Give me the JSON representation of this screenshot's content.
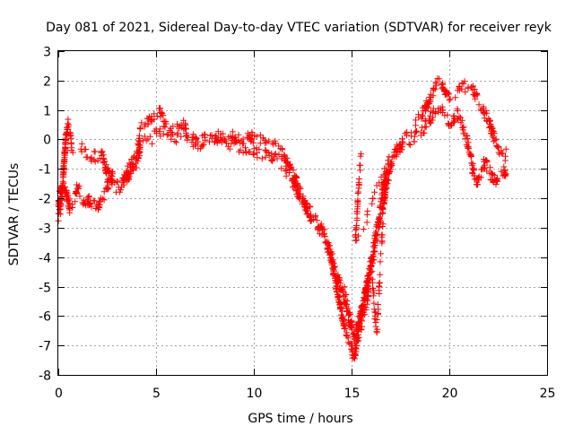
{
  "chart_data": {
    "type": "scatter",
    "title": "Day 081 of 2021, Sidereal Day-to-day VTEC variation (SDTVAR) for receiver reyk",
    "xlabel": "GPS time / hours",
    "ylabel": "SDTVAR / TECUs",
    "xlim": [
      0,
      25
    ],
    "ylim": [
      -8,
      3
    ],
    "xticks": [
      0,
      5,
      10,
      15,
      20,
      25
    ],
    "yticks": [
      -8,
      -7,
      -6,
      -5,
      -4,
      -3,
      -2,
      -1,
      0,
      1,
      2,
      3
    ],
    "grid": true,
    "marker": "+",
    "series": [
      {
        "name": "SDTVAR",
        "color": "#ff0000",
        "bands": [
          {
            "points": [
              [
                0.0,
                -2.6
              ],
              [
                0.1,
                -2.4
              ],
              [
                0.2,
                -1.8
              ],
              [
                0.3,
                -0.7
              ],
              [
                0.4,
                0.1
              ],
              [
                0.5,
                0.5
              ],
              [
                0.6,
                0.3
              ],
              [
                0.7,
                -0.4
              ],
              [
                0.8,
                -0.3
              ],
              [
                1.0,
                -0.2
              ],
              [
                1.2,
                -0.3
              ],
              [
                1.4,
                -0.5
              ],
              [
                1.6,
                -0.6
              ],
              [
                1.8,
                -0.5
              ],
              [
                2.0,
                -0.7
              ],
              [
                2.2,
                -0.4
              ],
              [
                2.4,
                -0.9
              ],
              [
                2.6,
                -1.3
              ],
              [
                2.8,
                -1.5
              ],
              [
                3.0,
                -1.7
              ],
              [
                3.2,
                -1.6
              ],
              [
                3.4,
                -1.3
              ],
              [
                3.6,
                -1.0
              ],
              [
                3.8,
                -0.8
              ],
              [
                4.0,
                -0.6
              ],
              [
                4.1,
                -0.2
              ],
              [
                4.2,
                0.4
              ],
              [
                4.4,
                0.5
              ],
              [
                4.6,
                0.6
              ],
              [
                4.8,
                0.7
              ],
              [
                5.0,
                0.8
              ],
              [
                5.2,
                0.9
              ],
              [
                5.4,
                0.6
              ],
              [
                5.6,
                0.4
              ],
              [
                5.8,
                0.3
              ],
              [
                6.0,
                0.3
              ],
              [
                6.2,
                0.4
              ],
              [
                6.4,
                0.5
              ],
              [
                6.5,
                0.4
              ],
              [
                6.6,
                0.1
              ],
              [
                6.8,
                0.0
              ],
              [
                7.0,
                -0.1
              ],
              [
                7.2,
                -0.3
              ],
              [
                7.4,
                -0.2
              ],
              [
                7.6,
                -0.1
              ],
              [
                7.8,
                0.0
              ],
              [
                8.0,
                0.1
              ],
              [
                8.2,
                0.1
              ],
              [
                8.5,
                0.1
              ],
              [
                8.8,
                0.0
              ],
              [
                9.0,
                0.1
              ],
              [
                9.3,
                0.0
              ],
              [
                9.5,
                0.0
              ],
              [
                9.8,
                0.1
              ],
              [
                10.0,
                0.0
              ],
              [
                10.2,
                0.0
              ],
              [
                10.5,
                -0.1
              ],
              [
                10.8,
                -0.2
              ],
              [
                11.0,
                -0.2
              ],
              [
                11.2,
                -0.3
              ],
              [
                11.4,
                -0.4
              ],
              [
                11.6,
                -0.6
              ],
              [
                11.8,
                -0.9
              ],
              [
                12.0,
                -1.2
              ],
              [
                12.2,
                -1.5
              ],
              [
                12.4,
                -1.8
              ],
              [
                12.6,
                -2.1
              ],
              [
                12.8,
                -2.4
              ],
              [
                13.0,
                -2.6
              ],
              [
                13.2,
                -2.8
              ],
              [
                13.4,
                -3.0
              ],
              [
                13.6,
                -3.2
              ],
              [
                13.8,
                -3.6
              ],
              [
                14.0,
                -4.2
              ],
              [
                14.2,
                -4.9
              ],
              [
                14.4,
                -5.6
              ],
              [
                14.6,
                -6.2
              ],
              [
                14.8,
                -6.7
              ],
              [
                15.0,
                -7.1
              ],
              [
                15.1,
                -7.4
              ],
              [
                15.2,
                -7.2
              ],
              [
                15.3,
                -6.6
              ],
              [
                15.4,
                -6.2
              ],
              [
                15.6,
                -5.6
              ],
              [
                15.8,
                -5.0
              ],
              [
                16.0,
                -4.4
              ],
              [
                16.2,
                -3.7
              ],
              [
                16.4,
                -3.0
              ],
              [
                16.6,
                -2.3
              ],
              [
                16.8,
                -1.5
              ],
              [
                17.0,
                -0.9
              ],
              [
                17.2,
                -0.5
              ],
              [
                17.4,
                -0.3
              ],
              [
                17.6,
                -0.1
              ],
              [
                17.8,
                0.1
              ],
              [
                18.0,
                0.3
              ],
              [
                18.2,
                0.5
              ],
              [
                18.4,
                0.7
              ],
              [
                18.6,
                0.9
              ],
              [
                18.8,
                1.1
              ],
              [
                19.0,
                1.4
              ],
              [
                19.2,
                1.7
              ],
              [
                19.4,
                1.9
              ],
              [
                19.6,
                1.8
              ],
              [
                19.8,
                1.6
              ],
              [
                20.0,
                1.4
              ],
              [
                20.2,
                1.5
              ],
              [
                20.4,
                1.6
              ],
              [
                20.6,
                1.7
              ],
              [
                20.8,
                1.8
              ],
              [
                21.0,
                1.9
              ],
              [
                21.2,
                1.7
              ],
              [
                21.4,
                1.4
              ],
              [
                21.6,
                1.2
              ],
              [
                21.8,
                0.9
              ],
              [
                22.0,
                0.6
              ],
              [
                22.2,
                0.2
              ],
              [
                22.4,
                -0.1
              ],
              [
                22.6,
                -0.4
              ],
              [
                22.8,
                -0.6
              ],
              [
                22.9,
                -0.5
              ]
            ],
            "width": 0.4,
            "count": 760
          },
          {
            "points": [
              [
                0.0,
                -2.2
              ],
              [
                0.2,
                -1.5
              ],
              [
                0.4,
                -1.8
              ],
              [
                0.6,
                -2.4
              ],
              [
                0.8,
                -2.1
              ],
              [
                1.0,
                -1.6
              ],
              [
                1.2,
                -1.9
              ],
              [
                1.4,
                -2.3
              ],
              [
                1.6,
                -2.0
              ],
              [
                1.8,
                -2.2
              ],
              [
                2.0,
                -2.4
              ],
              [
                2.2,
                -2.1
              ],
              [
                2.4,
                -1.8
              ],
              [
                2.6,
                -1.4
              ],
              [
                2.8,
                -1.2
              ],
              [
                3.0,
                -1.4
              ],
              [
                3.2,
                -1.7
              ],
              [
                3.4,
                -1.3
              ],
              [
                3.6,
                -1.2
              ],
              [
                3.8,
                -1.0
              ],
              [
                4.0,
                -0.9
              ],
              [
                4.2,
                -0.3
              ],
              [
                4.4,
                0.0
              ],
              [
                4.6,
                0.1
              ],
              [
                4.8,
                0.0
              ],
              [
                5.0,
                0.2
              ],
              [
                5.2,
                0.3
              ],
              [
                5.4,
                0.2
              ],
              [
                5.6,
                0.2
              ],
              [
                5.8,
                0.1
              ],
              [
                6.0,
                0.0
              ],
              [
                6.2,
                0.1
              ],
              [
                6.4,
                0.2
              ],
              [
                6.6,
                0.1
              ],
              [
                7.0,
                0.0
              ],
              [
                7.5,
                0.1
              ],
              [
                8.0,
                0.0
              ],
              [
                8.5,
                -0.1
              ],
              [
                9.0,
                -0.2
              ],
              [
                9.5,
                -0.3
              ],
              [
                10.0,
                -0.4
              ],
              [
                10.5,
                -0.5
              ],
              [
                11.0,
                -0.6
              ],
              [
                11.3,
                -0.7
              ],
              [
                11.6,
                -1.0
              ],
              [
                11.9,
                -1.3
              ],
              [
                12.2,
                -1.7
              ],
              [
                12.5,
                -2.1
              ],
              [
                12.8,
                -2.5
              ],
              [
                13.1,
                -2.8
              ],
              [
                13.4,
                -3.1
              ],
              [
                13.7,
                -3.5
              ],
              [
                14.0,
                -4.0
              ],
              [
                14.3,
                -4.7
              ],
              [
                14.6,
                -5.4
              ],
              [
                14.9,
                -6.1
              ],
              [
                15.1,
                -6.6
              ],
              [
                15.3,
                -6.4
              ],
              [
                15.5,
                -5.9
              ],
              [
                15.7,
                -5.2
              ],
              [
                15.9,
                -4.5
              ],
              [
                16.1,
                -3.8
              ],
              [
                16.3,
                -3.0
              ],
              [
                16.5,
                -2.2
              ],
              [
                16.7,
                -1.3
              ],
              [
                16.9,
                -0.8
              ],
              [
                17.1,
                -0.6
              ],
              [
                17.4,
                -0.4
              ],
              [
                17.7,
                -0.2
              ],
              [
                18.0,
                -0.1
              ],
              [
                18.3,
                0.1
              ],
              [
                18.6,
                0.3
              ],
              [
                18.9,
                0.6
              ],
              [
                19.2,
                0.9
              ],
              [
                19.5,
                1.1
              ],
              [
                19.8,
                0.8
              ],
              [
                20.1,
                0.5
              ],
              [
                20.4,
                0.9
              ],
              [
                20.7,
                0.4
              ],
              [
                21.0,
                -0.3
              ],
              [
                21.2,
                -1.0
              ],
              [
                21.4,
                -1.5
              ],
              [
                21.6,
                -1.2
              ],
              [
                21.8,
                -0.8
              ],
              [
                22.0,
                -1.0
              ],
              [
                22.2,
                -1.3
              ],
              [
                22.4,
                -1.5
              ],
              [
                22.6,
                -1.3
              ],
              [
                22.8,
                -1.0
              ],
              [
                22.9,
                -1.4
              ]
            ],
            "width": 0.4,
            "count": 640
          },
          {
            "points": [
              [
                14.6,
                -5.0
              ],
              [
                14.8,
                -5.8
              ],
              [
                15.0,
                -6.4
              ],
              [
                15.2,
                -6.9
              ],
              [
                15.4,
                -6.5
              ],
              [
                15.6,
                -6.0
              ],
              [
                15.8,
                -5.5
              ],
              [
                15.9,
                -4.8
              ],
              [
                16.0,
                -4.2
              ],
              [
                16.1,
                -5.0
              ],
              [
                16.2,
                -6.0
              ],
              [
                16.3,
                -6.4
              ],
              [
                16.4,
                -5.2
              ],
              [
                16.5,
                -4.0
              ],
              [
                16.6,
                -2.8
              ],
              [
                16.7,
                -1.6
              ],
              [
                16.8,
                -1.0
              ],
              [
                15.2,
                -3.5
              ],
              [
                15.3,
                -2.2
              ],
              [
                15.4,
                -1.2
              ],
              [
                15.5,
                -0.5
              ]
            ],
            "width": 0.5,
            "count": 150
          }
        ]
      }
    ]
  }
}
